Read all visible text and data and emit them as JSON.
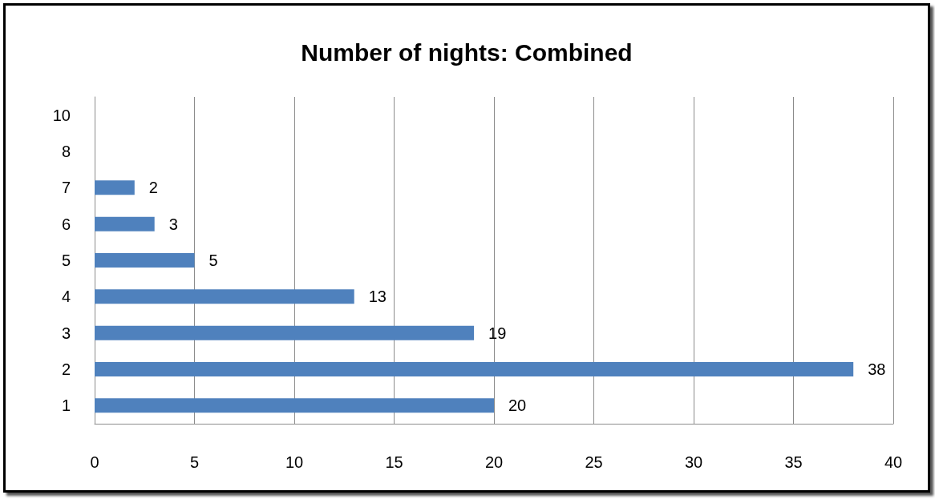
{
  "chart_data": {
    "type": "bar",
    "orientation": "horizontal",
    "title": "Number of nights: Combined",
    "categories": [
      "10",
      "8",
      "7",
      "6",
      "5",
      "4",
      "3",
      "2",
      "1"
    ],
    "values": [
      null,
      null,
      2,
      3,
      5,
      13,
      19,
      38,
      20
    ],
    "color": "#4f81bd",
    "xlim": [
      0,
      40
    ],
    "xticks": [
      0,
      5,
      10,
      15,
      20,
      25,
      30,
      35,
      40
    ],
    "grid": "x",
    "data_labels": true
  }
}
